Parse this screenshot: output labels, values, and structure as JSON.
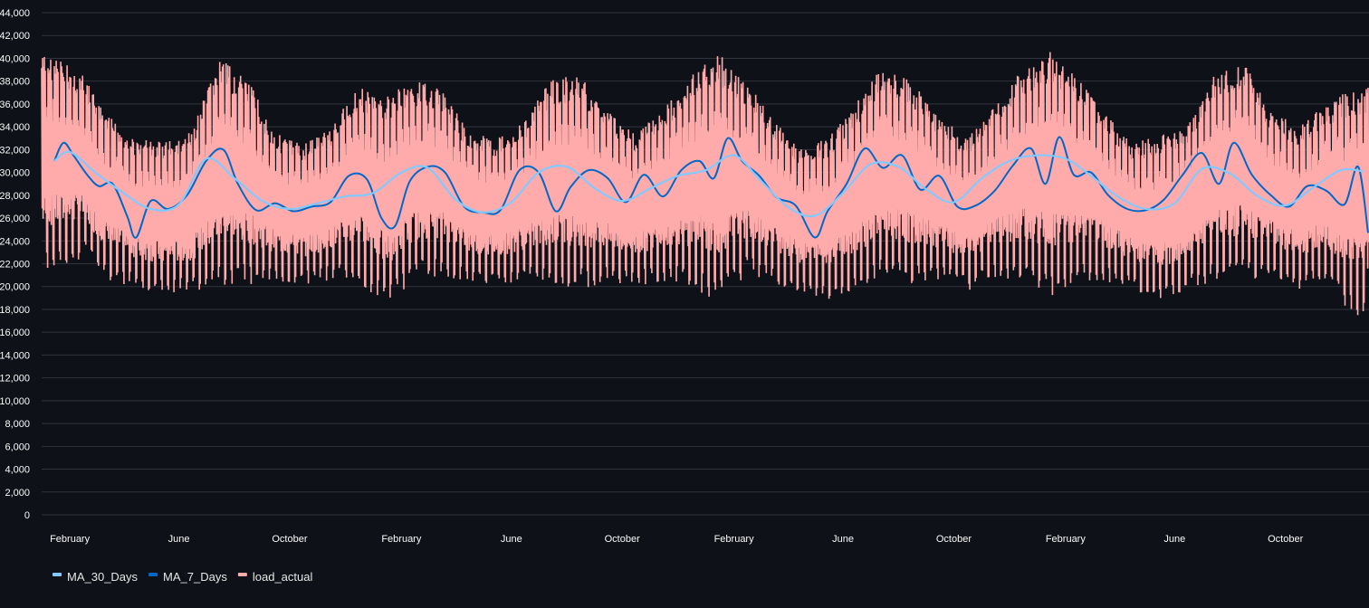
{
  "chart_data": {
    "type": "line",
    "title": "",
    "xlabel": "",
    "ylabel": "",
    "ylim": [
      0,
      44000
    ],
    "y_ticks": [
      0,
      2000,
      4000,
      6000,
      8000,
      10000,
      12000,
      14000,
      16000,
      18000,
      20000,
      22000,
      24000,
      26000,
      28000,
      30000,
      32000,
      34000,
      36000,
      38000,
      40000,
      42000,
      44000
    ],
    "y_tick_labels": [
      "0",
      "2,000",
      "4,000",
      "6,000",
      "8,000",
      "10,000",
      "12,000",
      "14,000",
      "16,000",
      "18,000",
      "20,000",
      "22,000",
      "24,000",
      "26,000",
      "28,000",
      "30,000",
      "32,000",
      "34,000",
      "36,000",
      "38,000",
      "40,000",
      "42,000",
      "44,000"
    ],
    "x_range": [
      "2015-01",
      "2018-12"
    ],
    "x_ticks": [
      "2015-02",
      "2015-06",
      "2015-10",
      "2016-02",
      "2016-06",
      "2016-10",
      "2017-02",
      "2017-06",
      "2017-10",
      "2018-02",
      "2018-06",
      "2018-10"
    ],
    "x_tick_labels": [
      "February",
      "June",
      "October",
      "February",
      "June",
      "October",
      "February",
      "June",
      "October",
      "February",
      "June",
      "October"
    ],
    "grid": true,
    "legend": "bottom-left",
    "series": [
      {
        "name": "MA_30_Days",
        "color": "#83c9ff",
        "x": [
          "2015-01-15",
          "2015-02-01",
          "2015-03-01",
          "2015-04-01",
          "2015-05-01",
          "2015-06-01",
          "2015-07-01",
          "2015-08-01",
          "2015-09-01",
          "2015-10-01",
          "2015-11-01",
          "2015-12-01",
          "2016-01-01",
          "2016-02-01",
          "2016-03-01",
          "2016-04-01",
          "2016-05-01",
          "2016-06-01",
          "2016-07-01",
          "2016-08-01",
          "2016-09-01",
          "2016-10-01",
          "2016-11-01",
          "2016-12-01",
          "2017-01-01",
          "2017-02-01",
          "2017-03-01",
          "2017-04-01",
          "2017-05-01",
          "2017-06-01",
          "2017-07-01",
          "2017-08-01",
          "2017-09-01",
          "2017-10-01",
          "2017-11-01",
          "2017-12-01",
          "2018-01-01",
          "2018-02-01",
          "2018-03-01",
          "2018-04-01",
          "2018-05-01",
          "2018-06-01",
          "2018-07-01",
          "2018-08-01",
          "2018-09-01",
          "2018-10-01",
          "2018-11-01",
          "2018-12-01",
          "2018-12-25"
        ],
        "values": [
          31000,
          31800,
          30000,
          28200,
          26800,
          27200,
          31200,
          29500,
          27500,
          26800,
          27300,
          27900,
          28200,
          30000,
          30400,
          27600,
          26500,
          27400,
          30000,
          30500,
          28600,
          27500,
          28600,
          29700,
          30200,
          31500,
          29400,
          27000,
          26200,
          28200,
          30700,
          30500,
          28500,
          27400,
          29500,
          31000,
          31500,
          31200,
          29700,
          27800,
          26800,
          27300,
          30300,
          29900,
          27900,
          27100,
          28700,
          30200,
          30100
        ]
      },
      {
        "name": "MA_7_Days",
        "color": "#0068c9",
        "x": [
          "2015-01-15",
          "2015-01-25",
          "2015-02-05",
          "2015-02-20",
          "2015-03-05",
          "2015-03-20",
          "2015-04-05",
          "2015-04-15",
          "2015-05-01",
          "2015-05-20",
          "2015-06-10",
          "2015-07-01",
          "2015-07-20",
          "2015-08-05",
          "2015-08-25",
          "2015-09-15",
          "2015-10-05",
          "2015-10-25",
          "2015-11-15",
          "2015-12-05",
          "2015-12-25",
          "2016-01-10",
          "2016-01-25",
          "2016-02-10",
          "2016-03-01",
          "2016-03-20",
          "2016-04-10",
          "2016-05-01",
          "2016-05-20",
          "2016-06-10",
          "2016-07-01",
          "2016-07-20",
          "2016-08-05",
          "2016-08-25",
          "2016-09-15",
          "2016-10-05",
          "2016-10-25",
          "2016-11-15",
          "2016-12-05",
          "2016-12-25",
          "2017-01-10",
          "2017-01-25",
          "2017-02-10",
          "2017-03-01",
          "2017-03-20",
          "2017-04-10",
          "2017-05-01",
          "2017-05-15",
          "2017-06-05",
          "2017-06-25",
          "2017-07-15",
          "2017-08-05",
          "2017-08-25",
          "2017-09-15",
          "2017-10-05",
          "2017-10-25",
          "2017-11-15",
          "2017-12-05",
          "2017-12-25",
          "2018-01-10",
          "2018-01-25",
          "2018-02-10",
          "2018-03-01",
          "2018-03-20",
          "2018-04-10",
          "2018-05-01",
          "2018-05-20",
          "2018-06-10",
          "2018-07-01",
          "2018-07-20",
          "2018-08-05",
          "2018-08-25",
          "2018-09-15",
          "2018-10-05",
          "2018-10-25",
          "2018-11-15",
          "2018-12-05",
          "2018-12-20",
          "2018-12-31"
        ],
        "values": [
          31000,
          32600,
          31500,
          29800,
          28800,
          29000,
          26200,
          24300,
          27500,
          26800,
          28000,
          31000,
          32000,
          29000,
          26700,
          27300,
          26600,
          27000,
          27400,
          29700,
          29400,
          26000,
          25300,
          29200,
          30500,
          30000,
          27000,
          26500,
          26700,
          30200,
          30000,
          26600,
          28700,
          30200,
          29500,
          27400,
          29800,
          27900,
          30200,
          31000,
          29500,
          33000,
          31000,
          29700,
          27800,
          27100,
          24300,
          26600,
          29000,
          32100,
          30400,
          31500,
          28500,
          29700,
          27000,
          27100,
          28400,
          30600,
          32100,
          29000,
          33100,
          29800,
          30000,
          28000,
          26800,
          26700,
          27600,
          29800,
          31700,
          29000,
          32600,
          29800,
          28000,
          27000,
          28800,
          28400,
          27200,
          30500,
          24700
        ]
      },
      {
        "name": "load_actual",
        "color": "#ffabab",
        "x": [
          "2015-01",
          "2015-02",
          "2015-03",
          "2015-04",
          "2015-05",
          "2015-06",
          "2015-07",
          "2015-08",
          "2015-09",
          "2015-10",
          "2015-11",
          "2015-12",
          "2016-01",
          "2016-02",
          "2016-03",
          "2016-04",
          "2016-05",
          "2016-06",
          "2016-07",
          "2016-08",
          "2016-09",
          "2016-10",
          "2016-11",
          "2016-12",
          "2017-01",
          "2017-02",
          "2017-03",
          "2017-04",
          "2017-05",
          "2017-06",
          "2017-07",
          "2017-08",
          "2017-09",
          "2017-10",
          "2017-11",
          "2017-12",
          "2018-01",
          "2018-02",
          "2018-03",
          "2018-04",
          "2018-05",
          "2018-06",
          "2018-07",
          "2018-08",
          "2018-09",
          "2018-10",
          "2018-11",
          "2018-12"
        ],
        "max": [
          40300,
          38500,
          35000,
          33000,
          32800,
          33500,
          40000,
          38300,
          33500,
          32500,
          34000,
          37500,
          36800,
          38000,
          37500,
          33500,
          33000,
          34500,
          38200,
          38500,
          35500,
          33500,
          35500,
          38500,
          40500,
          37800,
          35000,
          32000,
          33000,
          36000,
          39500,
          38000,
          35000,
          33000,
          36000,
          39000,
          40600,
          38300,
          35500,
          32500,
          33300,
          34000,
          38600,
          39800,
          35500,
          34000,
          36000,
          37500
        ],
        "min": [
          21500,
          22500,
          20500,
          19800,
          19200,
          19500,
          20000,
          20200,
          20300,
          20100,
          20600,
          20500,
          18100,
          20600,
          20900,
          20300,
          20000,
          20400,
          20000,
          19800,
          20200,
          20000,
          20500,
          19800,
          18500,
          21000,
          20300,
          19500,
          18900,
          19800,
          20600,
          20200,
          20500,
          19600,
          20600,
          20400,
          18900,
          20300,
          20500,
          19800,
          18500,
          19800,
          20300,
          20500,
          20800,
          19700,
          20300,
          17300
        ]
      }
    ]
  }
}
